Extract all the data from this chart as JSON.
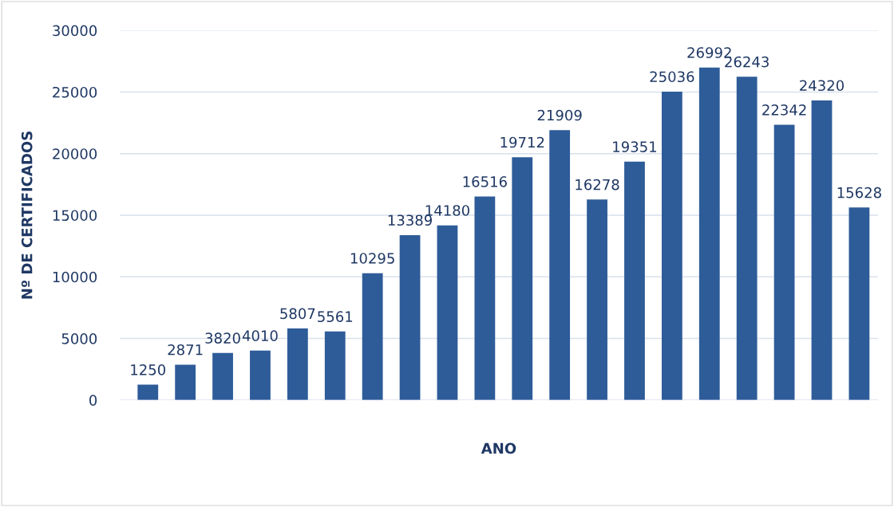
{
  "chart_data": {
    "type": "bar",
    "xlabel": "ANO",
    "ylabel": "Nº DE CERTIFICADOS",
    "categories": [
      null,
      null,
      null,
      null,
      null,
      null,
      null,
      null,
      null,
      null,
      null,
      null,
      null,
      null,
      null,
      null,
      null,
      null,
      null,
      null
    ],
    "values": [
      1250,
      2871,
      3820,
      4010,
      5807,
      5561,
      10295,
      13389,
      14180,
      16516,
      19712,
      21909,
      16278,
      19351,
      25036,
      26992,
      26243,
      22342,
      24320,
      15628
    ],
    "color": "#2e5c99",
    "ylim": [
      0,
      30000
    ],
    "yticks": [
      0,
      5000,
      10000,
      15000,
      20000,
      25000,
      30000
    ],
    "grid": "y",
    "data_labels": true
  }
}
